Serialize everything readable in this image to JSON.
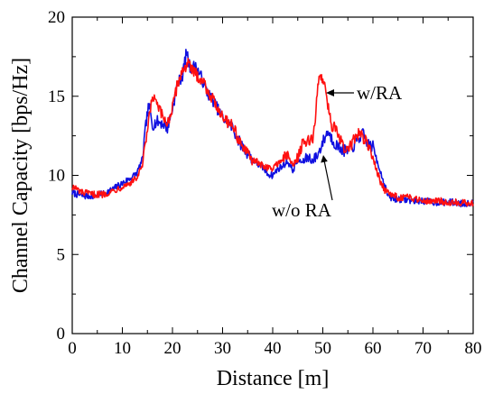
{
  "chart_data": {
    "type": "line",
    "title": "",
    "xlabel": "Distance [m]",
    "ylabel": "Channel Capacity [bps/Hz]",
    "xlim": [
      0,
      80
    ],
    "ylim": [
      0,
      20
    ],
    "x_ticks": [
      0,
      10,
      20,
      30,
      40,
      50,
      60,
      70,
      80
    ],
    "y_ticks": [
      0,
      5,
      10,
      15,
      20
    ],
    "x_tick_labels": [
      "0",
      "10",
      "20",
      "30",
      "40",
      "50",
      "60",
      "70",
      "80"
    ],
    "y_tick_labels": [
      "0",
      "5",
      "10",
      "15",
      "20"
    ],
    "grid": false,
    "legend": "none",
    "annotations": [
      {
        "text": "w/RA",
        "points_to": [
          50.5,
          15.0
        ]
      },
      {
        "text": "w/o RA",
        "points_to": [
          51.5,
          11.3
        ]
      }
    ],
    "series": [
      {
        "label": "w/o RA",
        "color": "#1010e0",
        "points": [
          [
            0,
            8.9
          ],
          [
            2,
            8.7
          ],
          [
            4,
            8.7
          ],
          [
            6,
            8.8
          ],
          [
            8,
            9.1
          ],
          [
            10,
            9.5
          ],
          [
            12,
            9.9
          ],
          [
            13,
            10.2
          ],
          [
            14,
            11.0
          ],
          [
            14.8,
            13.5
          ],
          [
            15.3,
            14.4
          ],
          [
            16,
            13.2
          ],
          [
            17,
            13.4
          ],
          [
            18,
            13.3
          ],
          [
            19,
            13.0
          ],
          [
            20,
            14.2
          ],
          [
            21,
            15.8
          ],
          [
            22,
            16.3
          ],
          [
            22.8,
            17.8
          ],
          [
            23.5,
            16.8
          ],
          [
            24.5,
            16.9
          ],
          [
            25.5,
            16.4
          ],
          [
            27,
            15.2
          ],
          [
            28,
            14.8
          ],
          [
            29,
            14.2
          ],
          [
            30,
            13.6
          ],
          [
            31,
            13.4
          ],
          [
            32,
            13.0
          ],
          [
            33,
            12.3
          ],
          [
            34,
            11.8
          ],
          [
            35,
            11.4
          ],
          [
            36,
            11.0
          ],
          [
            37,
            10.7
          ],
          [
            38,
            10.5
          ],
          [
            39,
            10.1
          ],
          [
            40,
            10.0
          ],
          [
            41,
            10.4
          ],
          [
            42,
            10.6
          ],
          [
            43,
            10.9
          ],
          [
            44,
            10.3
          ],
          [
            45,
            11.0
          ],
          [
            46,
            10.8
          ],
          [
            47,
            11.2
          ],
          [
            48,
            10.9
          ],
          [
            49,
            11.3
          ],
          [
            50,
            12.1
          ],
          [
            51,
            12.8
          ],
          [
            52,
            12.2
          ],
          [
            53,
            11.8
          ],
          [
            54,
            11.6
          ],
          [
            55,
            11.5
          ],
          [
            56,
            11.8
          ],
          [
            57,
            12.3
          ],
          [
            58,
            12.6
          ],
          [
            59,
            12.0
          ],
          [
            60,
            11.8
          ],
          [
            61,
            10.8
          ],
          [
            62,
            9.7
          ],
          [
            63,
            8.7
          ],
          [
            64,
            8.5
          ],
          [
            66,
            8.5
          ],
          [
            68,
            8.4
          ],
          [
            70,
            8.4
          ],
          [
            72,
            8.3
          ],
          [
            74,
            8.3
          ],
          [
            76,
            8.3
          ],
          [
            78,
            8.2
          ],
          [
            80,
            8.3
          ]
        ]
      },
      {
        "label": "w/RA",
        "color": "#ff1010",
        "points": [
          [
            0,
            9.3
          ],
          [
            2,
            8.9
          ],
          [
            4,
            8.8
          ],
          [
            6,
            8.8
          ],
          [
            8,
            9.0
          ],
          [
            10,
            9.3
          ],
          [
            12,
            9.6
          ],
          [
            13,
            9.9
          ],
          [
            14,
            10.6
          ],
          [
            15,
            12.8
          ],
          [
            16,
            15.0
          ],
          [
            17,
            14.4
          ],
          [
            18,
            13.7
          ],
          [
            19,
            13.3
          ],
          [
            20,
            14.2
          ],
          [
            21,
            15.8
          ],
          [
            22,
            16.6
          ],
          [
            23,
            17.1
          ],
          [
            24,
            16.6
          ],
          [
            25,
            16.3
          ],
          [
            26,
            16.0
          ],
          [
            27,
            15.4
          ],
          [
            28,
            14.8
          ],
          [
            29,
            14.3
          ],
          [
            30,
            13.8
          ],
          [
            31,
            13.4
          ],
          [
            32,
            13.2
          ],
          [
            33,
            12.4
          ],
          [
            34,
            11.8
          ],
          [
            35,
            11.3
          ],
          [
            36,
            11.0
          ],
          [
            37,
            10.8
          ],
          [
            38,
            10.6
          ],
          [
            39,
            10.5
          ],
          [
            40,
            10.4
          ],
          [
            41,
            10.8
          ],
          [
            42,
            11.0
          ],
          [
            43,
            11.3
          ],
          [
            44,
            10.6
          ],
          [
            45,
            11.2
          ],
          [
            46,
            12.0
          ],
          [
            47,
            12.1
          ],
          [
            48,
            12.4
          ],
          [
            48.5,
            13.4
          ],
          [
            49,
            15.8
          ],
          [
            49.5,
            16.3
          ],
          [
            50.5,
            15.8
          ],
          [
            51,
            14.4
          ],
          [
            51.8,
            13.2
          ],
          [
            52.5,
            12.9
          ],
          [
            53.5,
            12.2
          ],
          [
            54.5,
            11.6
          ],
          [
            55.5,
            11.8
          ],
          [
            56.5,
            12.4
          ],
          [
            57.5,
            12.7
          ],
          [
            58.5,
            12.2
          ],
          [
            59.5,
            11.5
          ],
          [
            60.5,
            10.6
          ],
          [
            61.5,
            9.6
          ],
          [
            62.5,
            9.0
          ],
          [
            63.5,
            8.8
          ],
          [
            65,
            8.6
          ],
          [
            67,
            8.6
          ],
          [
            69,
            8.5
          ],
          [
            71,
            8.4
          ],
          [
            73,
            8.4
          ],
          [
            75,
            8.3
          ],
          [
            77,
            8.3
          ],
          [
            80,
            8.2
          ]
        ]
      }
    ]
  }
}
